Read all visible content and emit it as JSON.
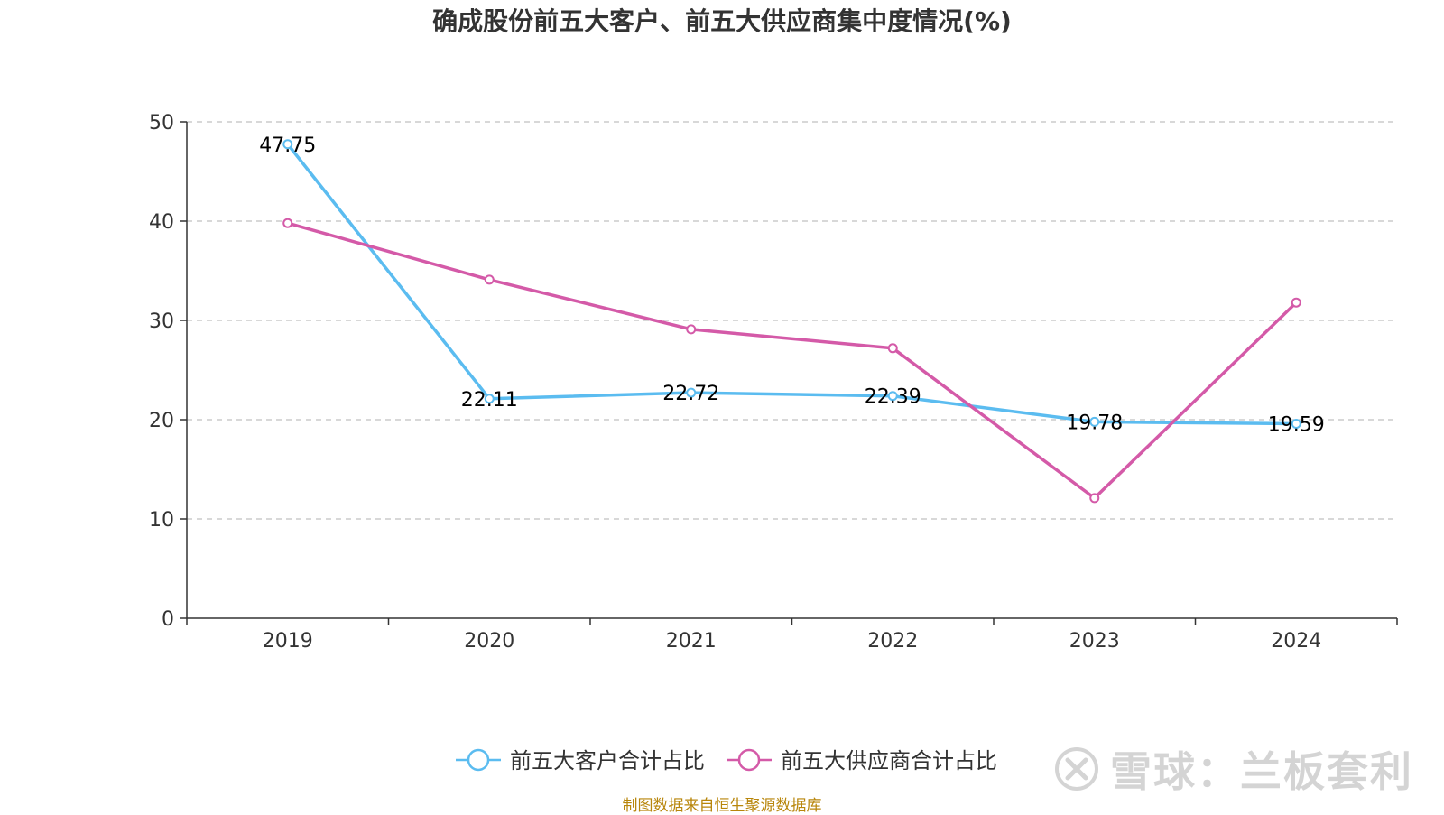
{
  "chart_data": {
    "type": "line",
    "title": "确成股份前五大客户、前五大供应商集中度情况(%)",
    "categories": [
      "2019",
      "2020",
      "2021",
      "2022",
      "2023",
      "2024"
    ],
    "series": [
      {
        "name": "前五大客户合计占比",
        "values": [
          47.75,
          22.11,
          22.72,
          22.39,
          19.78,
          19.59
        ],
        "color": "#5bbcf0",
        "show_labels": true
      },
      {
        "name": "前五大供应商合计占比",
        "values": [
          39.8,
          34.1,
          29.1,
          27.2,
          12.1,
          31.8
        ],
        "color": "#d45aa8",
        "show_labels": false
      }
    ],
    "ylim": [
      0,
      50
    ],
    "yticks": [
      0,
      10,
      20,
      30,
      40,
      50
    ],
    "grid": true,
    "legend_position": "bottom-center"
  },
  "footer": {
    "source": "制图数据来自恒生聚源数据库",
    "watermark": "雪球：兰板套利"
  }
}
